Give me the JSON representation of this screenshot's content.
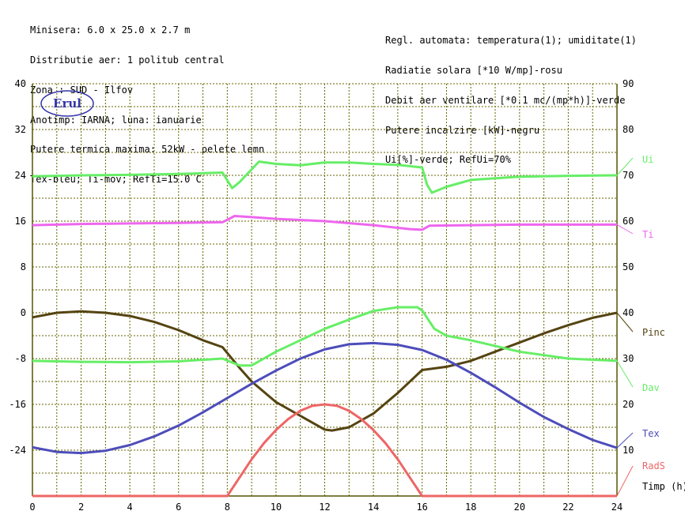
{
  "header": {
    "left": [
      "Minisera: 6.0 x 25.0 x 2.7 m",
      "Distributie aer: 1 politub central",
      "Zona : SUD - Ilfov",
      "Anotimp: IARNA; luna: ianuarie",
      "Putere termica maxima: 52kW - pelete lemn",
      "Tex-bleu; Ti-mov; RefTi=15.0 C"
    ],
    "right": [
      "Regl. automata: temperatura(1); umiditate(1)",
      "Radiatie solara [*10 W/mp]-rosu",
      "Debit aer ventilare [*0.1 mc/(mp*h)]-verde",
      "Putere incalzire [kW]-negru",
      "Ui[%]-verde; RefUi=70%"
    ]
  },
  "logo_text": "Erul",
  "colors": {
    "grid": "#666600",
    "axis": "#555500",
    "Ui": "#66ee66",
    "Ti": "#ee66ee",
    "Pinc": "#554411",
    "Dav": "#66ee66",
    "Tex": "#4d4dbb",
    "RadS": "#ee6666"
  },
  "chart_data": {
    "type": "line",
    "xlabel": "Timp (h)",
    "x_ticks": [
      "0",
      "2",
      "4",
      "6",
      "8",
      "10",
      "12",
      "14",
      "16",
      "18",
      "20",
      "22",
      "24"
    ],
    "xlim": [
      0,
      24
    ],
    "left_axis": {
      "ticks": [
        "40",
        "32",
        "24",
        "16",
        "8",
        "0",
        "-8",
        "-16",
        "-24"
      ],
      "ylim": [
        -32,
        40
      ]
    },
    "right_axis": {
      "ticks": [
        "90",
        "80",
        "70",
        "60",
        "50",
        "40",
        "30",
        "20",
        "10"
      ],
      "ylim": [
        0,
        90
      ]
    },
    "series": [
      {
        "name": "Ui",
        "axis": "right",
        "x": [
          0,
          2,
          4,
          6,
          7.8,
          8.2,
          8.5,
          9.3,
          10,
          11,
          12,
          13,
          14,
          15,
          16,
          16.2,
          16.4,
          17,
          18,
          20,
          22,
          24
        ],
        "values": [
          69.8,
          70,
          70.1,
          70.3,
          70.6,
          67.2,
          68.5,
          73,
          72.5,
          72.2,
          72.8,
          72.8,
          72.5,
          72.3,
          71.7,
          68,
          66.2,
          67.5,
          69,
          69.7,
          69.9,
          70
        ]
      },
      {
        "name": "Ti",
        "axis": "left",
        "x": [
          0,
          2,
          4,
          6,
          7.8,
          8.3,
          9,
          10,
          12,
          14,
          15.5,
          16,
          16.3,
          18,
          20,
          22,
          24
        ],
        "values": [
          15.3,
          15.5,
          15.6,
          15.7,
          15.8,
          16.9,
          16.7,
          16.4,
          16,
          15.3,
          14.6,
          14.5,
          15.2,
          15.3,
          15.4,
          15.4,
          15.4
        ]
      },
      {
        "name": "Pinc",
        "axis": "right",
        "x": [
          0,
          1,
          2,
          3,
          4,
          5,
          6,
          7,
          7.8,
          8.5,
          9,
          10,
          11,
          12,
          12.3,
          13,
          14,
          15,
          16,
          17,
          18,
          19,
          20,
          21,
          22,
          23,
          24
        ],
        "values": [
          39,
          40,
          40.3,
          40,
          39.3,
          38,
          36.2,
          34,
          32.5,
          28,
          25,
          20.5,
          17.5,
          14.5,
          14.3,
          15,
          18,
          22.5,
          27.5,
          28.2,
          29.5,
          31.5,
          33.5,
          35.5,
          37.3,
          38.9,
          40
        ]
      },
      {
        "name": "Dav",
        "axis": "right",
        "x": [
          0,
          2,
          4,
          6,
          7.8,
          8.5,
          9,
          10,
          11,
          12,
          13,
          14,
          15,
          15.8,
          16,
          16.5,
          17,
          18,
          20,
          22,
          24
        ],
        "values": [
          29.5,
          29.3,
          29.2,
          29.4,
          30,
          28.5,
          28.5,
          31.5,
          34,
          36.5,
          38.5,
          40.4,
          41.2,
          41.2,
          40.5,
          36.5,
          35,
          34,
          31.5,
          30,
          29.5
        ]
      },
      {
        "name": "Tex",
        "axis": "left",
        "x": [
          0,
          1,
          2,
          3,
          4,
          5,
          6,
          7,
          8,
          9,
          10,
          11,
          12,
          13,
          14,
          15,
          16,
          17,
          18,
          19,
          20,
          21,
          22,
          23,
          24
        ],
        "values": [
          -23.5,
          -24.3,
          -24.5,
          -24.1,
          -23.1,
          -21.6,
          -19.7,
          -17.4,
          -14.9,
          -12.4,
          -10.1,
          -8,
          -6.4,
          -5.5,
          -5.3,
          -5.6,
          -6.5,
          -8.2,
          -10.5,
          -13,
          -15.7,
          -18.2,
          -20.3,
          -22.2,
          -23.6
        ]
      },
      {
        "name": "RadS",
        "axis": "right",
        "x": [
          0,
          7.95,
          8,
          8.5,
          9,
          9.5,
          10,
          10.5,
          11,
          11.5,
          12,
          12.5,
          13,
          13.5,
          14,
          14.5,
          15,
          15.5,
          16,
          16.05,
          24
        ],
        "values": [
          0,
          0,
          0,
          4,
          8,
          11.5,
          14.4,
          16.8,
          18.6,
          19.7,
          20,
          19.7,
          18.6,
          16.8,
          14.4,
          11.5,
          8,
          4,
          0,
          0,
          0
        ]
      }
    ]
  }
}
